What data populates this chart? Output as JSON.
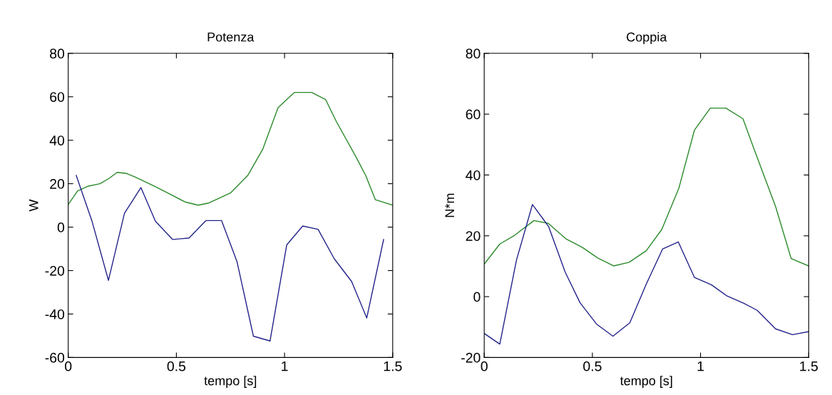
{
  "chart_data": [
    {
      "type": "line",
      "title": "Potenza",
      "xlabel": "tempo [s]",
      "ylabel": "W",
      "xlim": [
        0,
        1.5
      ],
      "xticks": [
        0,
        0.5,
        1,
        1.5
      ],
      "ylim": [
        -60,
        80
      ],
      "yticks": [
        -60,
        -40,
        -20,
        0,
        20,
        40,
        60,
        80
      ],
      "grid": false,
      "legend": false,
      "series": [
        {
          "color": "#2a8a2a",
          "x": [
            0,
            0.043,
            0.09,
            0.147,
            0.19,
            0.226,
            0.27,
            0.31,
            0.4,
            0.46,
            0.54,
            0.6,
            0.65,
            0.75,
            0.83,
            0.9,
            0.97,
            1.045,
            1.125,
            1.19,
            1.24,
            1.33,
            1.375,
            1.42,
            1.5
          ],
          "values": [
            10.4,
            16.6,
            18.8,
            20,
            22.5,
            25.2,
            24.7,
            23,
            18.8,
            15.7,
            11.6,
            10.1,
            11.1,
            15.7,
            23.8,
            36,
            55,
            62,
            62,
            58.7,
            48.5,
            32.4,
            23.8,
            12.6,
            10.1
          ]
        },
        {
          "color": "#22228a",
          "x": [
            0.037,
            0.11,
            0.186,
            0.26,
            0.336,
            0.403,
            0.483,
            0.559,
            0.636,
            0.709,
            0.78,
            0.856,
            0.933,
            1.01,
            1.084,
            1.155,
            1.23,
            1.31,
            1.38,
            1.458
          ],
          "values": [
            23.8,
            2.7,
            -24.5,
            6.4,
            18.2,
            2.7,
            -5.7,
            -5,
            3,
            3,
            -15.8,
            -50.2,
            -52.4,
            -8.2,
            0.5,
            -1,
            -14.6,
            -25,
            -41.8,
            -5.7
          ]
        }
      ]
    },
    {
      "type": "line",
      "title": "Coppia",
      "xlabel": "tempo [s]",
      "ylabel": "N*m",
      "xlim": [
        0,
        1.5
      ],
      "xticks": [
        0,
        0.5,
        1,
        1.5
      ],
      "ylim": [
        -20,
        80
      ],
      "yticks": [
        -20,
        0,
        20,
        40,
        60,
        80
      ],
      "grid": false,
      "legend": false,
      "series": [
        {
          "color": "#2a8a2a",
          "x": [
            0,
            0.072,
            0.139,
            0.23,
            0.296,
            0.38,
            0.453,
            0.525,
            0.598,
            0.67,
            0.749,
            0.821,
            0.9,
            0.972,
            1.045,
            1.117,
            1.196,
            1.25,
            1.347,
            1.419,
            1.5
          ],
          "values": [
            10.7,
            17.3,
            20.1,
            25,
            24.1,
            18.9,
            16.2,
            12.7,
            10.1,
            11.3,
            15.1,
            22.1,
            35.7,
            54.8,
            62,
            62,
            58.5,
            48,
            29.6,
            12.5,
            10.1
          ]
        },
        {
          "color": "#22228a",
          "x": [
            0,
            0.072,
            0.149,
            0.223,
            0.298,
            0.374,
            0.443,
            0.519,
            0.595,
            0.673,
            0.749,
            0.825,
            0.897,
            0.972,
            1.05,
            1.123,
            1.2,
            1.262,
            1.347,
            1.425,
            1.5
          ],
          "values": [
            -12.1,
            -15.6,
            12,
            30.3,
            23,
            8.1,
            -2,
            -9,
            -13,
            -8.6,
            4.1,
            15.7,
            18,
            6.3,
            3.9,
            0.2,
            -2.2,
            -4.5,
            -10.6,
            -12.5,
            -11.5
          ]
        }
      ]
    }
  ]
}
